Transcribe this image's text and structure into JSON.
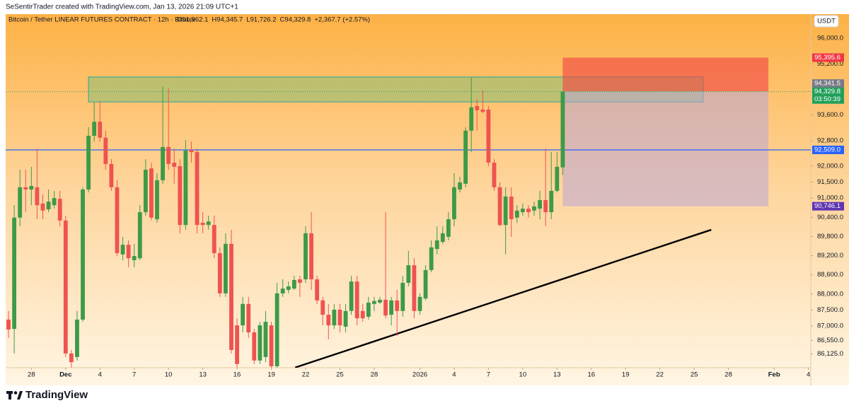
{
  "header": {
    "credit": "SeSentirTrader created with TradingView.com, Jan 13, 2026 21:09 UTC+1"
  },
  "footer": {
    "brand": "TradingView"
  },
  "chart_data": {
    "type": "candlestick",
    "symbol": "Bitcoin / Tether LINEAR FUTURES CONTRACT · 12h · Bitunix",
    "legend": {
      "open": "O91,962.1",
      "high": "H94,345.7",
      "low": "L91,726.2",
      "close": "C94,329.8",
      "change": "+2,367.7 (+2.57%)"
    },
    "currency": "USDT",
    "up_color": "#3d9a48",
    "down_color": "#ef5350",
    "x": [
      "2025-11-26T00:00",
      "2025-11-26T12:00",
      "2025-11-27T00:00",
      "2025-11-27T12:00",
      "2025-11-28T00:00",
      "2025-11-28T12:00",
      "2025-11-29T00:00",
      "2025-11-29T12:00",
      "2025-11-30T00:00",
      "2025-11-30T12:00",
      "2025-12-01T00:00",
      "2025-12-01T12:00",
      "2025-12-02T00:00",
      "2025-12-02T12:00",
      "2025-12-03T00:00",
      "2025-12-03T12:00",
      "2025-12-04T00:00",
      "2025-12-04T12:00",
      "2025-12-05T00:00",
      "2025-12-05T12:00",
      "2025-12-06T00:00",
      "2025-12-06T12:00",
      "2025-12-07T00:00",
      "2025-12-07T12:00",
      "2025-12-08T00:00",
      "2025-12-08T12:00",
      "2025-12-09T00:00",
      "2025-12-09T12:00",
      "2025-12-10T00:00",
      "2025-12-10T12:00",
      "2025-12-11T00:00",
      "2025-12-11T12:00",
      "2025-12-12T00:00",
      "2025-12-12T12:00",
      "2025-12-13T00:00",
      "2025-12-13T12:00",
      "2025-12-14T00:00",
      "2025-12-14T12:00",
      "2025-12-15T00:00",
      "2025-12-15T12:00",
      "2025-12-16T00:00",
      "2025-12-16T12:00",
      "2025-12-17T00:00",
      "2025-12-17T12:00",
      "2025-12-18T00:00",
      "2025-12-18T12:00",
      "2025-12-19T00:00",
      "2025-12-19T12:00",
      "2025-12-20T00:00",
      "2025-12-20T12:00",
      "2025-12-21T00:00",
      "2025-12-21T12:00",
      "2025-12-22T00:00",
      "2025-12-22T12:00",
      "2025-12-23T00:00",
      "2025-12-23T12:00",
      "2025-12-24T00:00",
      "2025-12-24T12:00",
      "2025-12-25T00:00",
      "2025-12-25T12:00",
      "2025-12-26T00:00",
      "2025-12-26T12:00",
      "2025-12-27T00:00",
      "2025-12-27T12:00",
      "2025-12-28T00:00",
      "2025-12-28T12:00",
      "2025-12-29T00:00",
      "2025-12-29T12:00",
      "2025-12-30T00:00",
      "2025-12-30T12:00",
      "2025-12-31T00:00",
      "2025-12-31T12:00",
      "2026-01-01T00:00",
      "2026-01-01T12:00",
      "2026-01-02T00:00",
      "2026-01-02T12:00",
      "2026-01-03T00:00",
      "2026-01-03T12:00",
      "2026-01-04T00:00",
      "2026-01-04T12:00",
      "2026-01-05T00:00",
      "2026-01-05T12:00",
      "2026-01-06T00:00",
      "2026-01-06T12:00",
      "2026-01-07T00:00",
      "2026-01-07T12:00",
      "2026-01-08T00:00",
      "2026-01-08T12:00",
      "2026-01-09T00:00",
      "2026-01-09T12:00",
      "2026-01-10T00:00",
      "2026-01-10T12:00",
      "2026-01-11T00:00",
      "2026-01-11T12:00",
      "2026-01-12T00:00",
      "2026-01-12T12:00",
      "2026-01-13T00:00",
      "2026-01-13T12:00"
    ],
    "open": [
      87200,
      86910,
      90390,
      91340,
      91270,
      91340,
      90830,
      90650,
      90780,
      90980,
      90300,
      86140,
      86030,
      87200,
      91270,
      92950,
      93390,
      92890,
      92070,
      91340,
      89240,
      89540,
      89060,
      89120,
      90560,
      91930,
      90340,
      91560,
      92600,
      92110,
      92000,
      90160,
      92510,
      92440,
      90230,
      90160,
      90160,
      89280,
      88020,
      89570,
      87020,
      87020,
      87690,
      86800,
      85920,
      86030,
      87020,
      85740,
      88020,
      88130,
      88170,
      88460,
      88460,
      89900,
      88460,
      87800,
      87350,
      87020,
      87510,
      86980,
      87470,
      88390,
      87470,
      87290,
      87690,
      87730,
      87820,
      87350,
      87800,
      87470,
      88350,
      88900,
      87470,
      87860,
      88750,
      89410,
      89630,
      89790,
      90340,
      91270,
      91450,
      93110,
      93880,
      93770,
      93770,
      92110,
      91340,
      90160,
      91050,
      90390,
      90560,
      90670,
      90610,
      90670,
      90940,
      90560,
      91230,
      91962.1
    ],
    "high": [
      87470,
      90780,
      91890,
      91890,
      91980,
      92550,
      91120,
      91270,
      91230,
      91230,
      90450,
      86250,
      87470,
      91340,
      93220,
      93990,
      94040,
      93110,
      92220,
      91560,
      89790,
      89680,
      89570,
      90780,
      92220,
      92110,
      91780,
      94500,
      94430,
      92550,
      92220,
      92820,
      92770,
      92550,
      90560,
      90450,
      90450,
      89460,
      89900,
      90010,
      87240,
      87910,
      87910,
      86910,
      87130,
      87470,
      87130,
      88350,
      88460,
      88390,
      88570,
      88570,
      90120,
      90560,
      88570,
      87910,
      87690,
      87690,
      87690,
      87690,
      88570,
      88570,
      87690,
      87910,
      87910,
      87910,
      90560,
      87910,
      88130,
      88570,
      89350,
      89120,
      88020,
      88900,
      89680,
      90120,
      90120,
      90560,
      91780,
      91670,
      93220,
      94770,
      94100,
      94370,
      93880,
      92220,
      91490,
      91340,
      91340,
      90780,
      90830,
      90780,
      90890,
      91230,
      92550,
      92440,
      92440,
      94345.7
    ],
    "low": [
      86630,
      86140,
      90120,
      90560,
      90780,
      90340,
      90340,
      90560,
      90670,
      90120,
      86030,
      85700,
      85920,
      87130,
      91180,
      92770,
      92770,
      91890,
      91230,
      89190,
      89060,
      88840,
      88840,
      89060,
      90450,
      90300,
      90230,
      91450,
      91890,
      91450,
      89900,
      90010,
      92110,
      89900,
      89900,
      90010,
      89120,
      87910,
      87910,
      86140,
      85700,
      86800,
      86630,
      85810,
      85810,
      85870,
      85700,
      85700,
      87910,
      88020,
      88130,
      87910,
      88350,
      88130,
      87690,
      87020,
      86580,
      86910,
      86800,
      86800,
      87350,
      87020,
      87130,
      87200,
      87470,
      87690,
      87240,
      87020,
      86690,
      87290,
      88240,
      87240,
      87350,
      87800,
      88680,
      89240,
      89570,
      89680,
      90120,
      91180,
      91340,
      92440,
      93110,
      93660,
      92000,
      91230,
      90120,
      89240,
      89790,
      90230,
      90450,
      90390,
      90450,
      90340,
      90120,
      90340,
      91180,
      91726.2
    ],
    "close": [
      86890,
      90390,
      91340,
      91270,
      91380,
      90780,
      90610,
      90890,
      91000,
      90300,
      86140,
      85870,
      87200,
      91270,
      92950,
      93390,
      92890,
      92070,
      91340,
      89280,
      89540,
      89120,
      89190,
      90560,
      91890,
      90390,
      91560,
      92600,
      92070,
      91980,
      90160,
      92490,
      92440,
      90160,
      90160,
      90270,
      89280,
      88020,
      89570,
      86250,
      85810,
      87690,
      86800,
      85920,
      87020,
      87130,
      85740,
      88020,
      88170,
      88240,
      88440,
      88350,
      89900,
      88460,
      87800,
      87350,
      87020,
      87510,
      87020,
      87470,
      88390,
      87240,
      87240,
      87730,
      87780,
      87820,
      87330,
      87800,
      87470,
      88350,
      88900,
      87470,
      87910,
      88750,
      89460,
      89680,
      89900,
      90340,
      91340,
      91490,
      93110,
      93840,
      93750,
      93700,
      92110,
      91340,
      90160,
      91050,
      90340,
      90610,
      90670,
      90560,
      90740,
      90940,
      90560,
      91230,
      91980,
      94329.8
    ],
    "xlim": [
      "2025-11-25T18:00",
      "2026-02-04T05:00"
    ],
    "xticks": [
      {
        "value": "2025-11-28T00:00",
        "label": "28"
      },
      {
        "value": "2025-12-01T00:00",
        "label": "Dec"
      },
      {
        "value": "2025-12-04T00:00",
        "label": "4"
      },
      {
        "value": "2025-12-07T00:00",
        "label": "7"
      },
      {
        "value": "2025-12-10T00:00",
        "label": "10"
      },
      {
        "value": "2025-12-13T00:00",
        "label": "13"
      },
      {
        "value": "2025-12-16T00:00",
        "label": "16"
      },
      {
        "value": "2025-12-19T00:00",
        "label": "19"
      },
      {
        "value": "2025-12-22T00:00",
        "label": "22"
      },
      {
        "value": "2025-12-25T00:00",
        "label": "25"
      },
      {
        "value": "2025-12-28T00:00",
        "label": "28"
      },
      {
        "value": "2026-01-01T00:00",
        "label": "2026"
      },
      {
        "value": "2026-01-04T00:00",
        "label": "4"
      },
      {
        "value": "2026-01-07T00:00",
        "label": "7"
      },
      {
        "value": "2026-01-10T00:00",
        "label": "10"
      },
      {
        "value": "2026-01-13T00:00",
        "label": "13"
      },
      {
        "value": "2026-01-16T00:00",
        "label": "16"
      },
      {
        "value": "2026-01-19T00:00",
        "label": "19"
      },
      {
        "value": "2026-01-22T00:00",
        "label": "22"
      },
      {
        "value": "2026-01-25T00:00",
        "label": "25"
      },
      {
        "value": "2026-01-28T00:00",
        "label": "28"
      },
      {
        "value": "2026-02-01T00:00",
        "label": "Feb"
      },
      {
        "value": "2026-02-04T00:00",
        "label": "4"
      }
    ],
    "ylim": [
      85695,
      96712
    ],
    "yticks": [
      {
        "value": 96000,
        "label": "96,000.0"
      },
      {
        "value": 95200,
        "label": "95,200.0"
      },
      {
        "value": 93600,
        "label": "93,600.0"
      },
      {
        "value": 92800,
        "label": "92,800.0"
      },
      {
        "value": 92000,
        "label": "92,000.0"
      },
      {
        "value": 91500,
        "label": "91,500.0"
      },
      {
        "value": 91000,
        "label": "91,000.0"
      },
      {
        "value": 90400,
        "label": "90,400.0"
      },
      {
        "value": 89800,
        "label": "89,800.0"
      },
      {
        "value": 89200,
        "label": "89,200.0"
      },
      {
        "value": 88600,
        "label": "88,600.0"
      },
      {
        "value": 88000,
        "label": "88,000.0"
      },
      {
        "value": 87500,
        "label": "87,500.0"
      },
      {
        "value": 87000,
        "label": "87,000.0"
      },
      {
        "value": 86550,
        "label": "86,550.0"
      },
      {
        "value": 86125,
        "label": "86,125.0"
      }
    ],
    "last_price": {
      "label": "94,329.8",
      "countdown": "03:50:39",
      "color": "#22a05a"
    },
    "hline": {
      "value": 92509.0,
      "label": "92,509.0",
      "color": "#2962ff"
    },
    "zone": {
      "top": 94790,
      "bottom": 94010,
      "from": "2025-12-03T00:00",
      "to": "2026-01-25T19:00"
    },
    "position": {
      "from": "2026-01-13T12:00",
      "to": "2026-01-31T12:00",
      "stop": {
        "value": 95395.6,
        "label": "95,395.6",
        "color": "#f23645"
      },
      "entry": {
        "value": 94341.5,
        "label": "94,341.5",
        "color": "#787b86"
      },
      "target": {
        "value": 90746.1,
        "label": "90,746.1",
        "color": "#5e35b1"
      }
    },
    "trendline": [
      {
        "x": "2025-12-21T02:00",
        "y": 85700
      },
      {
        "x": "2026-01-26T12:00",
        "y": 90010
      }
    ]
  }
}
